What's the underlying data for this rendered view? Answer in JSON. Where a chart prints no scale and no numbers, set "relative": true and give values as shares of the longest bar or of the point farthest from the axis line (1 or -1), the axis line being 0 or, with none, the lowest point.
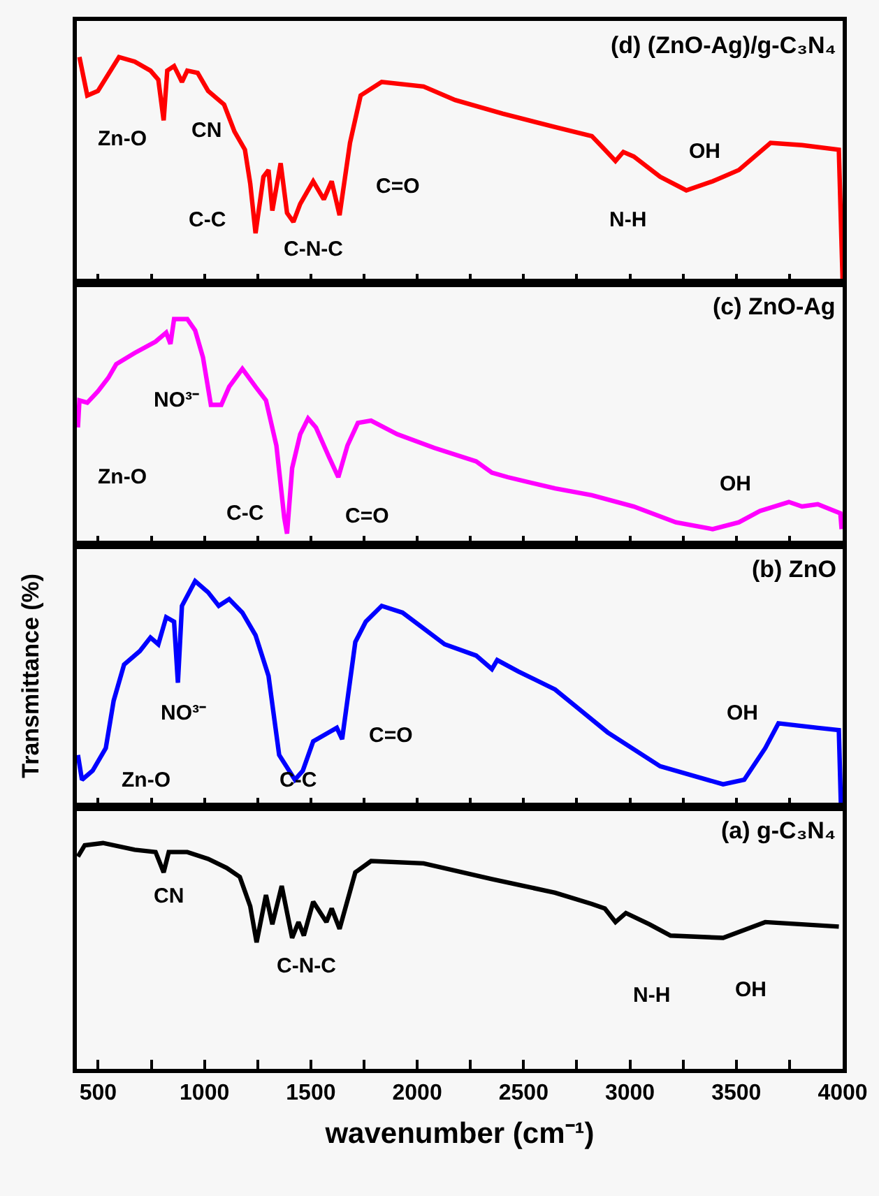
{
  "chart_data": [
    {
      "type": "line",
      "relative": true,
      "title": "(d) (ZnO-Ag)/g-C₃N₄",
      "xlim": [
        400,
        4000
      ],
      "xticks": [
        500,
        {
          "value": 750,
          "label": null
        },
        1000,
        {
          "value": 1250,
          "label": null
        },
        1500,
        {
          "value": 1750,
          "label": null
        },
        2000,
        {
          "value": 2250,
          "label": null
        },
        2500,
        {
          "value": 2750,
          "label": null
        },
        3000,
        {
          "value": 3250,
          "label": null
        },
        3500,
        {
          "value": 3750,
          "label": null
        },
        4000
      ],
      "tick_labels": false,
      "grid": false,
      "marker": "none",
      "line_style": "solid",
      "x": [
        412,
        449,
        499,
        598,
        672,
        746,
        783,
        808,
        825,
        857,
        894,
        919,
        968,
        1017,
        1092,
        1141,
        1190,
        1215,
        1240,
        1277,
        1301,
        1319,
        1358,
        1388,
        1418,
        1450,
        1511,
        1561,
        1598,
        1635,
        1684,
        1734,
        1833,
        2030,
        2178,
        2401,
        2648,
        2821,
        2882,
        2932,
        2969,
        3018,
        3142,
        3265,
        3389,
        3512,
        3661,
        3809,
        3982,
        4000
      ],
      "series": [
        {
          "color": "#ff0000",
          "values": [
            1.0,
            0.83,
            0.85,
            1.0,
            0.98,
            0.94,
            0.9,
            0.72,
            0.94,
            0.96,
            0.89,
            0.94,
            0.93,
            0.85,
            0.79,
            0.67,
            0.59,
            0.44,
            0.22,
            0.47,
            0.5,
            0.32,
            0.53,
            0.31,
            0.27,
            0.35,
            0.45,
            0.37,
            0.45,
            0.3,
            0.62,
            0.83,
            0.89,
            0.87,
            0.81,
            0.75,
            0.69,
            0.65,
            0.59,
            0.54,
            0.58,
            0.56,
            0.47,
            0.41,
            0.45,
            0.5,
            0.62,
            0.61,
            0.59,
            0.0
          ]
        }
      ],
      "annotations": [
        "Zn-O",
        "CN",
        "C-C",
        "C-N-C",
        "C=O",
        "N-H",
        "OH"
      ]
    },
    {
      "type": "line",
      "relative": true,
      "title": "(c) ZnO-Ag",
      "xlim": [
        400,
        4000
      ],
      "xticks": [
        500,
        {
          "value": 750,
          "label": null
        },
        1000,
        {
          "value": 1250,
          "label": null
        },
        1500,
        {
          "value": 1750,
          "label": null
        },
        2000,
        {
          "value": 2250,
          "label": null
        },
        2500,
        {
          "value": 2750,
          "label": null
        },
        3000,
        {
          "value": 3250,
          "label": null
        },
        3500,
        {
          "value": 3750,
          "label": null
        },
        4000
      ],
      "tick_labels": false,
      "grid": false,
      "marker": "none",
      "line_style": "solid",
      "x": [
        405,
        412,
        449,
        499,
        548,
        585,
        672,
        770,
        820,
        840,
        857,
        919,
        956,
        993,
        1030,
        1079,
        1116,
        1178,
        1240,
        1289,
        1338,
        1375,
        1388,
        1412,
        1450,
        1487,
        1524,
        1585,
        1629,
        1672,
        1721,
        1783,
        1906,
        2079,
        2277,
        2351,
        2425,
        2648,
        2821,
        3018,
        3216,
        3389,
        3512,
        3611,
        3747,
        3809,
        3883,
        3989,
        3995
      ],
      "series": [
        {
          "color": "#ff00ff",
          "values": [
            0.52,
            0.64,
            0.63,
            0.68,
            0.74,
            0.8,
            0.85,
            0.9,
            0.94,
            0.89,
            1.0,
            1.0,
            0.95,
            0.83,
            0.62,
            0.62,
            0.7,
            0.78,
            0.7,
            0.64,
            0.44,
            0.12,
            0.05,
            0.34,
            0.49,
            0.56,
            0.52,
            0.39,
            0.3,
            0.44,
            0.54,
            0.55,
            0.49,
            0.43,
            0.37,
            0.32,
            0.3,
            0.25,
            0.22,
            0.17,
            0.1,
            0.07,
            0.1,
            0.15,
            0.19,
            0.17,
            0.18,
            0.14,
            0.07
          ]
        }
      ],
      "annotations": [
        "NO³⁻",
        "Zn-O",
        "C-C",
        "C=O",
        "OH"
      ]
    },
    {
      "type": "line",
      "relative": true,
      "title": "(b) ZnO",
      "ylabel": "Transmittance (%)",
      "xlim": [
        400,
        4000
      ],
      "xticks": [
        500,
        {
          "value": 750,
          "label": null
        },
        1000,
        {
          "value": 1250,
          "label": null
        },
        1500,
        {
          "value": 1750,
          "label": null
        },
        2000,
        {
          "value": 2250,
          "label": null
        },
        2500,
        {
          "value": 2750,
          "label": null
        },
        3000,
        {
          "value": 3250,
          "label": null
        },
        3500,
        {
          "value": 3750,
          "label": null
        },
        4000
      ],
      "tick_labels": false,
      "grid": false,
      "marker": "none",
      "line_style": "solid",
      "x": [
        405,
        424,
        474,
        536,
        573,
        622,
        696,
        746,
        783,
        820,
        857,
        875,
        894,
        956,
        1017,
        1067,
        1116,
        1178,
        1240,
        1301,
        1351,
        1425,
        1462,
        1511,
        1585,
        1622,
        1647,
        1709,
        1758,
        1833,
        1931,
        2129,
        2277,
        2351,
        2376,
        2475,
        2648,
        2895,
        3142,
        3438,
        3537,
        3636,
        3698,
        3883,
        3982,
        3992
      ],
      "series": [
        {
          "color": "#0000ff",
          "values": [
            0.23,
            0.12,
            0.16,
            0.26,
            0.47,
            0.63,
            0.69,
            0.75,
            0.72,
            0.84,
            0.82,
            0.55,
            0.89,
            1.0,
            0.95,
            0.89,
            0.92,
            0.86,
            0.76,
            0.58,
            0.23,
            0.12,
            0.16,
            0.29,
            0.33,
            0.35,
            0.3,
            0.73,
            0.82,
            0.89,
            0.86,
            0.72,
            0.67,
            0.61,
            0.65,
            0.6,
            0.52,
            0.33,
            0.18,
            0.1,
            0.12,
            0.26,
            0.37,
            0.35,
            0.34,
            0.0
          ]
        }
      ],
      "annotations": [
        "NO³⁻",
        "Zn-O",
        "C-C",
        "C=O",
        "OH"
      ]
    },
    {
      "type": "line",
      "relative": true,
      "title": "(a) g-C₃N₄",
      "xlabel": "wavenumber (cm⁻¹)",
      "xlim": [
        400,
        4000
      ],
      "xticks": [
        500,
        {
          "value": 750,
          "label": null
        },
        1000,
        {
          "value": 1250,
          "label": null
        },
        1500,
        {
          "value": 1750,
          "label": null
        },
        2000,
        {
          "value": 2250,
          "label": null
        },
        2500,
        {
          "value": 2750,
          "label": null
        },
        3000,
        {
          "value": 3250,
          "label": null
        },
        3500,
        {
          "value": 3750,
          "label": null
        },
        4000
      ],
      "tick_labels": "x",
      "grid": false,
      "marker": "none",
      "line_style": "solid",
      "x": [
        405,
        437,
        523,
        672,
        770,
        808,
        832,
        919,
        1017,
        1104,
        1166,
        1215,
        1245,
        1289,
        1319,
        1363,
        1412,
        1442,
        1467,
        1511,
        1573,
        1598,
        1635,
        1709,
        1783,
        2030,
        2351,
        2648,
        2821,
        2882,
        2932,
        2981,
        3092,
        3191,
        3438,
        3636,
        3982
      ],
      "series": [
        {
          "color": "#000000",
          "values": [
            0.94,
            0.99,
            1.0,
            0.97,
            0.96,
            0.87,
            0.96,
            0.96,
            0.93,
            0.89,
            0.85,
            0.72,
            0.56,
            0.77,
            0.64,
            0.81,
            0.58,
            0.65,
            0.59,
            0.74,
            0.65,
            0.71,
            0.62,
            0.87,
            0.92,
            0.91,
            0.84,
            0.78,
            0.73,
            0.71,
            0.65,
            0.69,
            0.64,
            0.59,
            0.58,
            0.65,
            0.63
          ]
        }
      ],
      "annotations": [
        "CN",
        "C-N-C",
        "N-H",
        "OH"
      ]
    }
  ]
}
